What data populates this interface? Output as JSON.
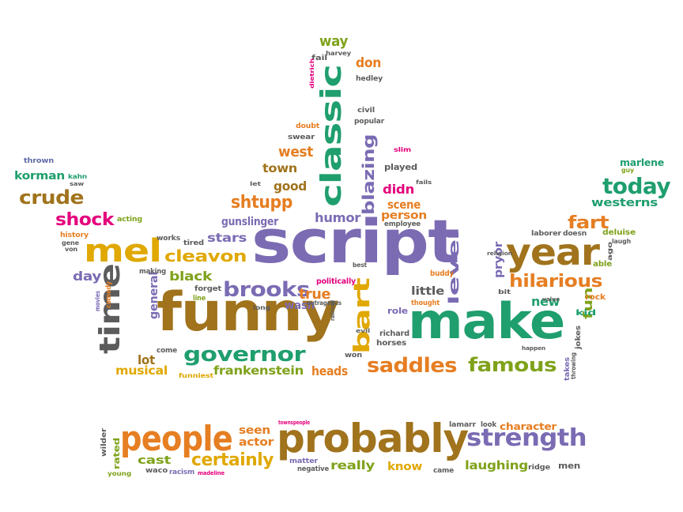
{
  "palette": {
    "purple": "#7b6bb3",
    "orange": "#e67e22",
    "brown": "#a0731c",
    "green": "#1f9e6e",
    "gray": "#5c5c5c",
    "pink": "#e4007c",
    "yellow": "#e0a800",
    "olive": "#7fa21a",
    "blue": "#5f6aa8",
    "red": "#d6336c"
  },
  "words": [
    {
      "text": "script",
      "color": "purple"
    },
    {
      "text": "funny",
      "color": "brown"
    },
    {
      "text": "make",
      "color": "green"
    },
    {
      "text": "probably",
      "color": "brown"
    },
    {
      "text": "people",
      "color": "orange"
    },
    {
      "text": "year",
      "color": "brown"
    },
    {
      "text": "classic",
      "color": "green"
    },
    {
      "text": "time",
      "color": "gray"
    },
    {
      "text": "mel",
      "color": "yellow"
    },
    {
      "text": "strength",
      "color": "purple"
    },
    {
      "text": "bart",
      "color": "yellow"
    },
    {
      "text": "governor",
      "color": "green"
    },
    {
      "text": "saddles",
      "color": "orange"
    },
    {
      "text": "famous",
      "color": "olive"
    },
    {
      "text": "brooks",
      "color": "purple"
    },
    {
      "text": "hilarious",
      "color": "orange"
    },
    {
      "text": "today",
      "color": "green"
    },
    {
      "text": "crude",
      "color": "brown"
    },
    {
      "text": "shock",
      "color": "pink"
    },
    {
      "text": "cleavon",
      "color": "yellow"
    },
    {
      "text": "shtupp",
      "color": "orange"
    },
    {
      "text": "blazing",
      "color": "purple"
    },
    {
      "text": "level",
      "color": "purple"
    },
    {
      "text": "certainly",
      "color": "yellow"
    },
    {
      "text": "fart",
      "color": "orange"
    },
    {
      "text": "way",
      "color": "olive"
    },
    {
      "text": "don",
      "color": "orange"
    },
    {
      "text": "west",
      "color": "orange"
    },
    {
      "text": "town",
      "color": "brown"
    },
    {
      "text": "good",
      "color": "brown"
    },
    {
      "text": "didn",
      "color": "pink"
    },
    {
      "text": "scene",
      "color": "orange"
    },
    {
      "text": "person",
      "color": "orange"
    },
    {
      "text": "humor",
      "color": "purple"
    },
    {
      "text": "gunslinger",
      "color": "purple"
    },
    {
      "text": "stars",
      "color": "purple"
    },
    {
      "text": "true",
      "color": "orange"
    },
    {
      "text": "wasn",
      "color": "purple"
    },
    {
      "text": "little",
      "color": "gray"
    },
    {
      "text": "pryor",
      "color": "purple"
    },
    {
      "text": "new",
      "color": "green"
    },
    {
      "text": "fun",
      "color": "olive"
    },
    {
      "text": "black",
      "color": "olive"
    },
    {
      "text": "day",
      "color": "purple"
    },
    {
      "text": "general",
      "color": "purple"
    },
    {
      "text": "lot",
      "color": "brown"
    },
    {
      "text": "musical",
      "color": "yellow"
    },
    {
      "text": "frankenstein",
      "color": "olive"
    },
    {
      "text": "heads",
      "color": "orange"
    },
    {
      "text": "seen",
      "color": "orange"
    },
    {
      "text": "actor",
      "color": "orange"
    },
    {
      "text": "cast",
      "color": "olive"
    },
    {
      "text": "really",
      "color": "olive"
    },
    {
      "text": "know",
      "color": "yellow"
    },
    {
      "text": "laughing",
      "color": "olive"
    },
    {
      "text": "character",
      "color": "orange"
    },
    {
      "text": "westerns",
      "color": "green"
    },
    {
      "text": "korman",
      "color": "green"
    },
    {
      "text": "played",
      "color": "gray"
    },
    {
      "text": "role",
      "color": "purple"
    },
    {
      "text": "richard",
      "color": "gray"
    },
    {
      "text": "horses",
      "color": "gray"
    },
    {
      "text": "won",
      "color": "gray"
    },
    {
      "text": "kid",
      "color": "green"
    },
    {
      "text": "rock",
      "color": "orange"
    },
    {
      "text": "able",
      "color": "olive"
    },
    {
      "text": "deluise",
      "color": "olive"
    },
    {
      "text": "marlene",
      "color": "green"
    },
    {
      "text": "guy",
      "color": "olive"
    },
    {
      "text": "laugh",
      "color": "gray"
    },
    {
      "text": "ago",
      "color": "gray"
    },
    {
      "text": "laborer",
      "color": "gray"
    },
    {
      "text": "doesn",
      "color": "gray"
    },
    {
      "text": "religion",
      "color": "gray"
    },
    {
      "text": "bit",
      "color": "gray"
    },
    {
      "text": "value",
      "color": "gray"
    },
    {
      "text": "happen",
      "color": "gray"
    },
    {
      "text": "jokes",
      "color": "gray"
    },
    {
      "text": "takes",
      "color": "purple"
    },
    {
      "text": "throwing",
      "color": "gray"
    },
    {
      "text": "thought",
      "color": "orange"
    },
    {
      "text": "buddy",
      "color": "orange"
    },
    {
      "text": "politically",
      "color": "pink"
    },
    {
      "text": "outrageous",
      "color": "gray"
    },
    {
      "text": "railroad",
      "color": "gray"
    },
    {
      "text": "evil",
      "color": "gray"
    },
    {
      "text": "best",
      "color": "gray"
    },
    {
      "text": "long",
      "color": "gray"
    },
    {
      "text": "forget",
      "color": "gray"
    },
    {
      "text": "line",
      "color": "olive"
    },
    {
      "text": "making",
      "color": "gray"
    },
    {
      "text": "works",
      "color": "gray"
    },
    {
      "text": "tired",
      "color": "gray"
    },
    {
      "text": "come",
      "color": "gray"
    },
    {
      "text": "funniest",
      "color": "yellow"
    },
    {
      "text": "movies",
      "color": "purple"
    },
    {
      "text": "comedy",
      "color": "orange"
    },
    {
      "text": "history",
      "color": "orange"
    },
    {
      "text": "gene",
      "color": "gray"
    },
    {
      "text": "von",
      "color": "gray"
    },
    {
      "text": "acting",
      "color": "olive"
    },
    {
      "text": "thrown",
      "color": "blue"
    },
    {
      "text": "kahn",
      "color": "green"
    },
    {
      "text": "saw",
      "color": "gray"
    },
    {
      "text": "let",
      "color": "gray"
    },
    {
      "text": "swear",
      "color": "gray"
    },
    {
      "text": "doubt",
      "color": "orange"
    },
    {
      "text": "civil",
      "color": "gray"
    },
    {
      "text": "popular",
      "color": "gray"
    },
    {
      "text": "slim",
      "color": "pink"
    },
    {
      "text": "fails",
      "color": "gray"
    },
    {
      "text": "fail",
      "color": "gray"
    },
    {
      "text": "harvey",
      "color": "gray"
    },
    {
      "text": "hedley",
      "color": "gray"
    },
    {
      "text": "dietrich",
      "color": "pink"
    },
    {
      "text": "employee",
      "color": "gray"
    },
    {
      "text": "wilder",
      "color": "gray"
    },
    {
      "text": "rated",
      "color": "olive"
    },
    {
      "text": "young",
      "color": "olive"
    },
    {
      "text": "waco",
      "color": "gray"
    },
    {
      "text": "racism",
      "color": "purple"
    },
    {
      "text": "madeline",
      "color": "pink"
    },
    {
      "text": "townspeople",
      "color": "pink"
    },
    {
      "text": "matter",
      "color": "purple"
    },
    {
      "text": "negative",
      "color": "gray"
    },
    {
      "text": "lamarr",
      "color": "gray"
    },
    {
      "text": "look",
      "color": "gray"
    },
    {
      "text": "came",
      "color": "gray"
    },
    {
      "text": "ridge",
      "color": "gray"
    },
    {
      "text": "men",
      "color": "gray"
    }
  ]
}
